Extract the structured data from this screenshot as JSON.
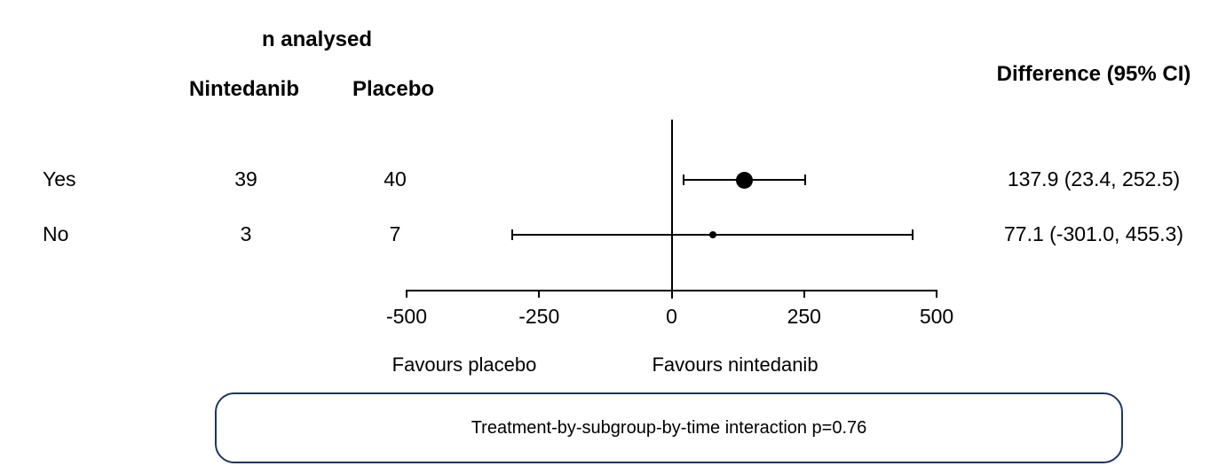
{
  "header": {
    "n_analysed_label": "n analysed",
    "col1": "Nintedanib",
    "col2": "Placebo",
    "difference_label": "Difference (95% CI)"
  },
  "rows": [
    {
      "label": "Yes",
      "nintedanib_n": "39",
      "placebo_n": "40",
      "difference_text": "137.9 (23.4, 252.5)",
      "estimate": 137.9,
      "ci_lower": 23.4,
      "ci_upper": 252.5,
      "marker_diameter": 19
    },
    {
      "label": "No",
      "nintedanib_n": "3",
      "placebo_n": "7",
      "difference_text": "77.1 (-301.0, 455.3)",
      "estimate": 77.1,
      "ci_lower": -301.0,
      "ci_upper": 455.3,
      "marker_diameter": 8
    }
  ],
  "axis": {
    "min": -500,
    "max": 500,
    "ticks": [
      "-500",
      "-250",
      "0",
      "250",
      "500"
    ],
    "tick_values": [
      -500,
      -250,
      0,
      250,
      500
    ],
    "reference_line": 0,
    "left_label": "Favours placebo",
    "right_label": "Favours nintedanib"
  },
  "footer": {
    "interaction_text": "Treatment-by-subgroup-by-time interaction p=0.76",
    "box_border_color": "#1e355e"
  },
  "colors": {
    "text": "#000000",
    "lines": "#000000",
    "box_border": "#1e355e",
    "background": "#ffffff"
  },
  "chart_data": {
    "type": "scatter",
    "subtype": "forest-plot",
    "title": "",
    "categories": [
      "Yes",
      "No"
    ],
    "series": [
      {
        "name": "Difference (95% CI)",
        "points": [
          {
            "subgroup": "Yes",
            "n_nintedanib": 39,
            "n_placebo": 40,
            "estimate": 137.9,
            "ci_lower": 23.4,
            "ci_upper": 252.5,
            "label": "137.9 (23.4, 252.5)"
          },
          {
            "subgroup": "No",
            "n_nintedanib": 3,
            "n_placebo": 7,
            "estimate": 77.1,
            "ci_lower": -301.0,
            "ci_upper": 455.3,
            "label": "77.1 (-301.0, 455.3)"
          }
        ]
      }
    ],
    "xlabel": "",
    "ylabel": "",
    "xlim": [
      -500,
      500
    ],
    "xticks": [
      -500,
      -250,
      0,
      250,
      500
    ],
    "reference_line": 0,
    "axis_annotations": {
      "left": "Favours placebo",
      "right": "Favours nintedanib"
    },
    "grid": false,
    "legend_position": "none",
    "footnote": "Treatment-by-subgroup-by-time interaction p=0.76",
    "column_headers": {
      "group": "n analysed",
      "col1": "Nintedanib",
      "col2": "Placebo",
      "right": "Difference (95% CI)"
    }
  }
}
